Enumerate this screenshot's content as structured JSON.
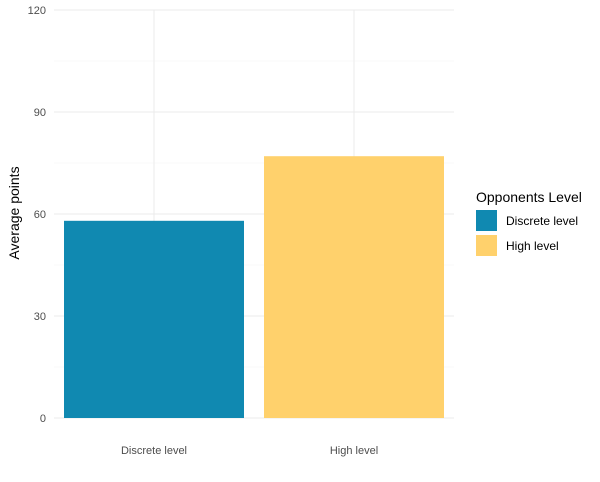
{
  "chart_data": {
    "type": "bar",
    "categories": [
      "Discrete level",
      "High level"
    ],
    "values": [
      58,
      77
    ],
    "ylabel": "Average points",
    "xlabel": "",
    "ylim": [
      0,
      120
    ],
    "yticks": [
      0,
      30,
      60,
      90,
      120
    ],
    "grid": true,
    "legend": {
      "title": "Opponents Level",
      "position": "right",
      "entries": [
        "Discrete level",
        "High level"
      ]
    },
    "colors": [
      "#1089B1",
      "#FFD16C"
    ]
  }
}
